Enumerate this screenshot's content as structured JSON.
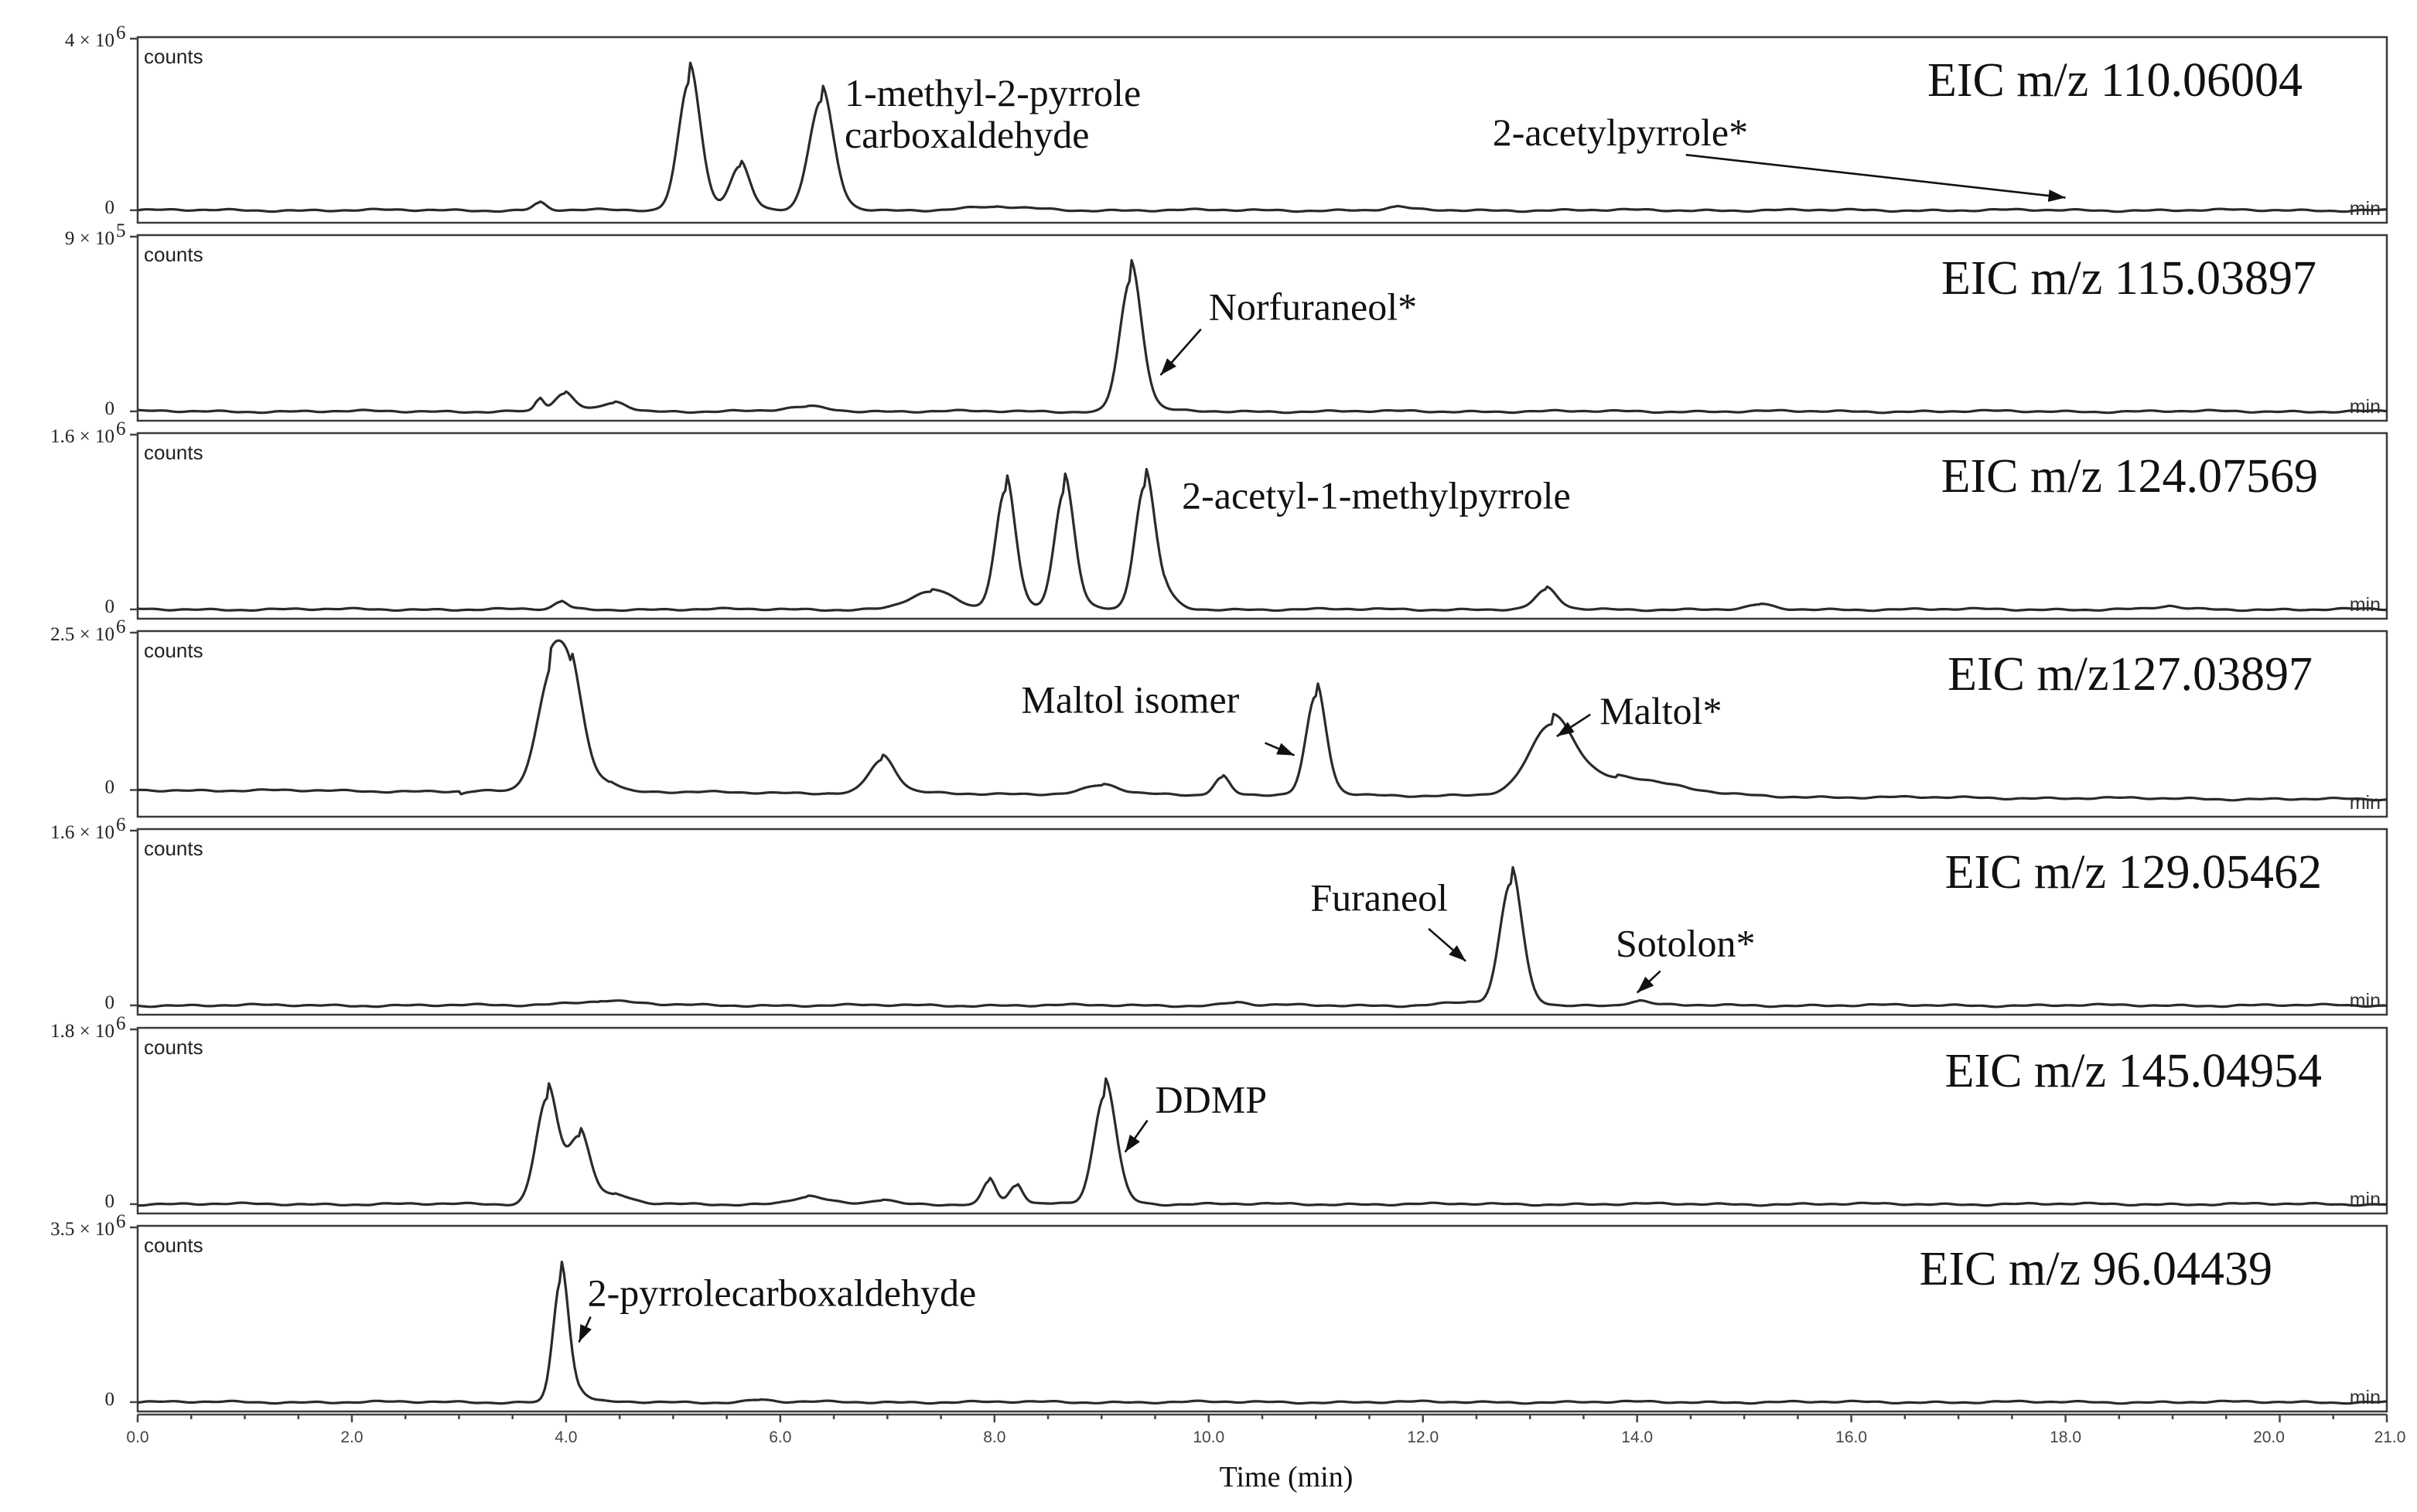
{
  "chart_data": {
    "type": "line",
    "xlabel": "Time (min)",
    "xlim": [
      0,
      21
    ],
    "x_ticks": [
      "0.0",
      "2.0",
      "4.0",
      "6.0",
      "8.0",
      "10.0",
      "12.0",
      "14.0",
      "16.0",
      "18.0",
      "20.0",
      "21.0"
    ],
    "y_unit_label": "counts",
    "x_unit_label": "min",
    "panels": [
      {
        "eic": "EIC m/z 110.06004",
        "ymax_label": "4 × 10",
        "ymax_exp": "6",
        "ymin_label": "0",
        "ymax": 4000000,
        "baseline": 0.04,
        "peaks": [
          [
            3.75,
            0.05,
            0.06
          ],
          [
            5.15,
            0.9,
            0.1
          ],
          [
            5.62,
            0.3,
            0.09
          ],
          [
            6.38,
            0.76,
            0.11
          ],
          [
            8.0,
            0.02,
            0.3
          ],
          [
            11.75,
            0.02,
            0.1
          ]
        ],
        "annotations": [
          {
            "id": "methylpyrrole",
            "text": "1-methyl-2-pyrrole",
            "text2": "carboxaldehyde",
            "x": 6.6,
            "yfrac": 0.7,
            "arrow": null
          },
          {
            "id": "acetylpyrrole",
            "text": "2-acetylpyrrole*",
            "x": 12.65,
            "yfrac": 0.45,
            "arrow": [
              18.0,
              0.12
            ]
          }
        ]
      },
      {
        "eic": "EIC m/z 115.03897",
        "ymax_label": "9 × 10",
        "ymax_exp": "5",
        "ymin_label": "0",
        "ymax": 900000,
        "baseline": 0.02,
        "peaks": [
          [
            3.75,
            0.08,
            0.04
          ],
          [
            3.98,
            0.12,
            0.09
          ],
          [
            4.45,
            0.06,
            0.12
          ],
          [
            6.25,
            0.03,
            0.2
          ],
          [
            9.27,
            0.92,
            0.1
          ]
        ],
        "annotations": [
          {
            "id": "norfuraneol",
            "text": "Norfuraneol*",
            "x": 10.0,
            "yfrac": 0.6,
            "arrow": [
              9.55,
              0.25
            ]
          }
        ]
      },
      {
        "eic": "EIC m/z 124.07569",
        "ymax_label": "1.6 × 10",
        "ymax_exp": "6",
        "ymin_label": "0",
        "ymax": 1600000,
        "baseline": 0.02,
        "peaks": [
          [
            3.95,
            0.05,
            0.06
          ],
          [
            7.4,
            0.12,
            0.2
          ],
          [
            8.1,
            0.83,
            0.09
          ],
          [
            8.65,
            0.83,
            0.09
          ],
          [
            9.4,
            0.85,
            0.09
          ],
          [
            9.58,
            0.08,
            0.1
          ],
          [
            13.15,
            0.13,
            0.1
          ],
          [
            15.15,
            0.03,
            0.1
          ],
          [
            18.95,
            0.02,
            0.1
          ]
        ],
        "annotations": [
          {
            "id": "acetylmethylpyrrole",
            "text": "2-acetyl-1-methylpyrrole",
            "x": 9.75,
            "yfrac": 0.66,
            "arrow": null
          }
        ]
      },
      {
        "eic": "EIC m/z127.03897",
        "ymax_label": "2.5 × 10",
        "ymax_exp": "6",
        "ymin_label": "0",
        "ymax": 2500000,
        "baseline": 0.13,
        "peaks": [
          [
            3.85,
            0.72,
            0.13
          ],
          [
            4.05,
            0.62,
            0.12
          ],
          [
            4.4,
            0.05,
            0.1
          ],
          [
            6.95,
            0.23,
            0.12
          ],
          [
            9.0,
            0.06,
            0.15
          ],
          [
            10.12,
            0.12,
            0.07
          ],
          [
            11.0,
            0.69,
            0.09
          ],
          [
            13.2,
            0.45,
            0.2
          ],
          [
            13.8,
            0.12,
            0.5
          ]
        ],
        "annotations": [
          {
            "id": "maltolisomer",
            "text": "Maltol isomer",
            "x": 8.25,
            "yfrac": 0.62,
            "arrow": [
              10.8,
              0.35
            ]
          },
          {
            "id": "maltol",
            "text": "Maltol*",
            "x": 13.65,
            "yfrac": 0.55,
            "arrow": [
              13.25,
              0.47
            ]
          }
        ]
      },
      {
        "eic": "EIC m/z 129.05462",
        "ymax_label": "1.6 × 10",
        "ymax_exp": "6",
        "ymin_label": "0",
        "ymax": 1600000,
        "baseline": 0.02,
        "peaks": [
          [
            4.3,
            0.03,
            0.3
          ],
          [
            10.25,
            0.02,
            0.1
          ],
          [
            12.4,
            0.02,
            0.2
          ],
          [
            12.82,
            0.85,
            0.1
          ],
          [
            14.0,
            0.03,
            0.1
          ]
        ],
        "annotations": [
          {
            "id": "furaneol",
            "text": "Furaneol",
            "x": 10.95,
            "yfrac": 0.62,
            "arrow": [
              12.4,
              0.3
            ]
          },
          {
            "id": "sotolon",
            "text": "Sotolon*",
            "x": 13.8,
            "yfrac": 0.33,
            "arrow": [
              14.0,
              0.1
            ]
          }
        ]
      },
      {
        "eic": "EIC m/z 145.04954",
        "ymax_label": "1.8 × 10",
        "ymax_exp": "6",
        "ymin_label": "0",
        "ymax": 1800000,
        "baseline": 0.02,
        "peaks": [
          [
            3.82,
            0.74,
            0.1
          ],
          [
            4.12,
            0.45,
            0.1
          ],
          [
            4.45,
            0.05,
            0.15
          ],
          [
            6.25,
            0.05,
            0.15
          ],
          [
            6.95,
            0.03,
            0.1
          ],
          [
            7.95,
            0.16,
            0.06
          ],
          [
            8.2,
            0.13,
            0.06
          ],
          [
            9.03,
            0.77,
            0.1
          ]
        ],
        "annotations": [
          {
            "id": "ddmp",
            "text": "DDMP",
            "x": 9.5,
            "yfrac": 0.6,
            "arrow": [
              9.22,
              0.35
            ]
          }
        ]
      },
      {
        "eic": "EIC m/z 96.04439",
        "ymax_label": "3.5 × 10",
        "ymax_exp": "6",
        "ymin_label": "0",
        "ymax": 3500000,
        "baseline": 0.02,
        "peaks": [
          [
            3.95,
            0.86,
            0.07
          ],
          [
            4.12,
            0.04,
            0.08
          ],
          [
            5.8,
            0.015,
            0.1
          ]
        ],
        "annotations": [
          {
            "id": "pyrrolecarbox",
            "text": "2-pyrrolecarboxaldehyde",
            "x": 4.2,
            "yfrac": 0.63,
            "arrow": [
              4.12,
              0.4
            ]
          }
        ]
      }
    ]
  }
}
